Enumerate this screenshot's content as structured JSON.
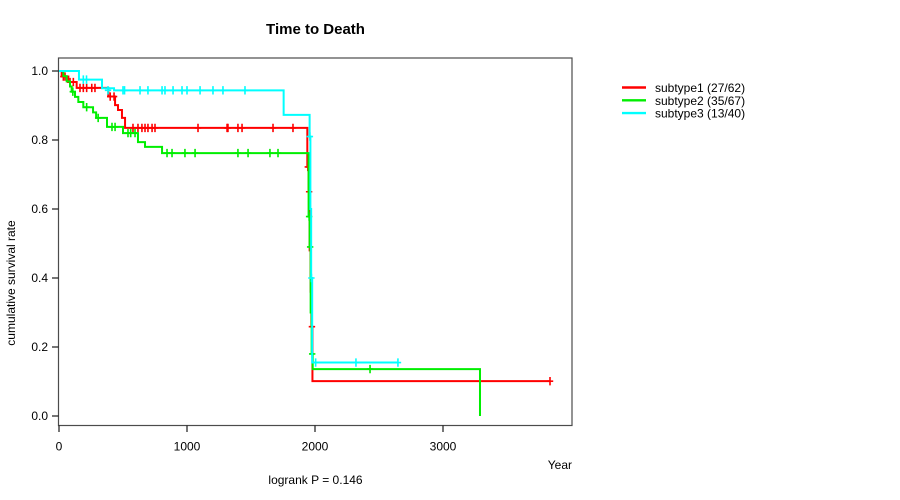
{
  "chart_data": {
    "type": "line",
    "variant": "kaplan-meier-step",
    "title": "Time to Death",
    "xlabel": "Year",
    "ylabel": "cumulative survival rate",
    "annotation": "logrank P = 0.146",
    "xlim": [
      0,
      4010
    ],
    "ylim": [
      0.0,
      1.0
    ],
    "x_ticks": [
      0,
      1000,
      2000,
      3000
    ],
    "y_ticks": [
      0.0,
      0.2,
      0.4,
      0.6,
      0.8,
      1.0
    ],
    "grid": false,
    "legend_position": "right-outside",
    "frame_color": "#4b4b4b",
    "tick_color": "#1a1a1a",
    "series": [
      {
        "name": "subtype1 (27/62)",
        "color": "#ff0000",
        "steps": [
          [
            0,
            1.0
          ],
          [
            21,
            0.984
          ],
          [
            73,
            0.968
          ],
          [
            138,
            0.951
          ],
          [
            385,
            0.926
          ],
          [
            438,
            0.901
          ],
          [
            461,
            0.887
          ],
          [
            492,
            0.864
          ],
          [
            516,
            0.835
          ],
          [
            1940,
            0.722
          ],
          [
            1950,
            0.65
          ],
          [
            1958,
            0.48
          ],
          [
            1966,
            0.36
          ],
          [
            1972,
            0.259
          ],
          [
            1980,
            0.101
          ],
          [
            3836,
            0.101
          ]
        ],
        "censors": [
          [
            34,
            0.984
          ],
          [
            47,
            0.984
          ],
          [
            86,
            0.968
          ],
          [
            112,
            0.968
          ],
          [
            164,
            0.951
          ],
          [
            190,
            0.951
          ],
          [
            216,
            0.951
          ],
          [
            256,
            0.951
          ],
          [
            281,
            0.951
          ],
          [
            400,
            0.926
          ],
          [
            430,
            0.926
          ],
          [
            578,
            0.835
          ],
          [
            617,
            0.835
          ],
          [
            648,
            0.835
          ],
          [
            672,
            0.835
          ],
          [
            695,
            0.835
          ],
          [
            727,
            0.835
          ],
          [
            750,
            0.835
          ],
          [
            1086,
            0.835
          ],
          [
            1313,
            0.835
          ],
          [
            1320,
            0.835
          ],
          [
            1398,
            0.835
          ],
          [
            1430,
            0.835
          ],
          [
            1672,
            0.835
          ],
          [
            1828,
            0.835
          ],
          [
            1944,
            0.722
          ],
          [
            1954,
            0.65
          ],
          [
            1976,
            0.259
          ],
          [
            3836,
            0.101
          ]
        ]
      },
      {
        "name": "subtype2 (35/67)",
        "color": "#00ee00",
        "steps": [
          [
            0,
            1.0
          ],
          [
            34,
            0.985
          ],
          [
            60,
            0.97
          ],
          [
            86,
            0.955
          ],
          [
            99,
            0.94
          ],
          [
            125,
            0.925
          ],
          [
            151,
            0.91
          ],
          [
            190,
            0.895
          ],
          [
            266,
            0.88
          ],
          [
            290,
            0.864
          ],
          [
            375,
            0.838
          ],
          [
            500,
            0.82
          ],
          [
            617,
            0.794
          ],
          [
            672,
            0.78
          ],
          [
            805,
            0.762
          ],
          [
            1950,
            0.578
          ],
          [
            1958,
            0.49
          ],
          [
            1966,
            0.3
          ],
          [
            1974,
            0.18
          ],
          [
            1982,
            0.136
          ],
          [
            3289,
            0.0
          ]
        ],
        "censors": [
          [
            108,
            0.94
          ],
          [
            216,
            0.895
          ],
          [
            306,
            0.864
          ],
          [
            414,
            0.838
          ],
          [
            438,
            0.838
          ],
          [
            539,
            0.82
          ],
          [
            560,
            0.82
          ],
          [
            594,
            0.82
          ],
          [
            844,
            0.762
          ],
          [
            883,
            0.762
          ],
          [
            984,
            0.762
          ],
          [
            1063,
            0.762
          ],
          [
            1398,
            0.762
          ],
          [
            1477,
            0.762
          ],
          [
            1648,
            0.762
          ],
          [
            1711,
            0.762
          ],
          [
            1954,
            0.578
          ],
          [
            1962,
            0.49
          ],
          [
            1978,
            0.18
          ],
          [
            2430,
            0.136
          ]
        ]
      },
      {
        "name": "subtype3 (13/40)",
        "color": "#00ffff",
        "steps": [
          [
            0,
            1.0
          ],
          [
            156,
            0.975
          ],
          [
            336,
            0.95
          ],
          [
            430,
            0.944
          ],
          [
            1755,
            0.873
          ],
          [
            1958,
            0.81
          ],
          [
            1964,
            0.6
          ],
          [
            1970,
            0.4
          ],
          [
            1978,
            0.155
          ],
          [
            2648,
            0.155
          ]
        ],
        "censors": [
          [
            190,
            0.975
          ],
          [
            215,
            0.975
          ],
          [
            383,
            0.944
          ],
          [
            500,
            0.944
          ],
          [
            512,
            0.944
          ],
          [
            633,
            0.944
          ],
          [
            695,
            0.944
          ],
          [
            805,
            0.944
          ],
          [
            828,
            0.944
          ],
          [
            891,
            0.944
          ],
          [
            961,
            0.944
          ],
          [
            1000,
            0.944
          ],
          [
            1102,
            0.944
          ],
          [
            1203,
            0.944
          ],
          [
            1281,
            0.944
          ],
          [
            1453,
            0.944
          ],
          [
            1960,
            0.81
          ],
          [
            1972,
            0.4
          ],
          [
            2005,
            0.155
          ],
          [
            2320,
            0.155
          ],
          [
            2648,
            0.155
          ]
        ]
      }
    ]
  }
}
